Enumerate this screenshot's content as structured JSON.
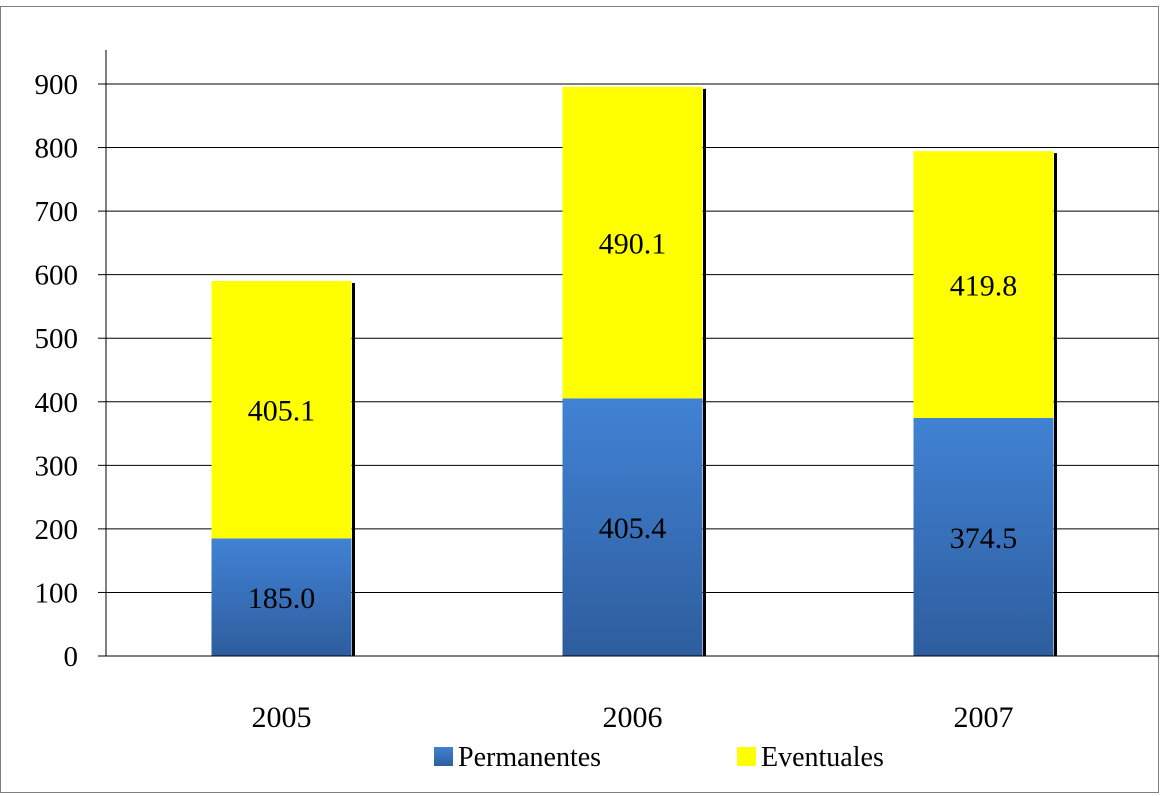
{
  "chart_data": {
    "type": "bar",
    "stacked": true,
    "categories": [
      "2005",
      "2006",
      "2007"
    ],
    "series": [
      {
        "name": "Permanentes",
        "values": [
          185.0,
          405.4,
          374.5
        ],
        "labels": [
          "185.0",
          "405.4",
          "374.5"
        ],
        "color": "#3d79c9"
      },
      {
        "name": "Eventuales",
        "values": [
          405.1,
          490.1,
          419.8
        ],
        "labels": [
          "405.1",
          "490.1",
          "419.8"
        ],
        "color": "#ffff00"
      }
    ],
    "ylim": [
      0,
      900
    ],
    "yticks": [
      0,
      100,
      200,
      300,
      400,
      500,
      600,
      700,
      800,
      900
    ],
    "grid": true,
    "legend": "bottom"
  }
}
